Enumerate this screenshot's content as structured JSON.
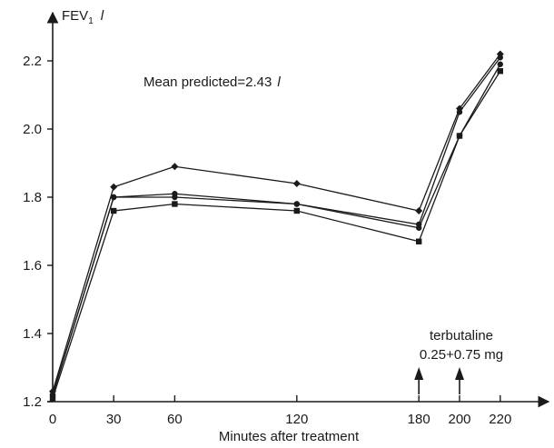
{
  "chart_data": {
    "type": "line",
    "title": "",
    "ylabel": "FEV",
    "ylabel_subscript": "1",
    "ylabel_unit": "l",
    "xlabel": "Minutes after treatment",
    "x_tick_labels": [
      "0",
      "30",
      "60",
      "120",
      "180",
      "200",
      "220"
    ],
    "y_tick_labels": [
      "1.2",
      "1.4",
      "1.6",
      "1.8",
      "2.0",
      "2.2"
    ],
    "x_ticks": [
      0,
      30,
      60,
      120,
      180,
      200,
      220
    ],
    "y_ticks": [
      1.2,
      1.4,
      1.6,
      1.8,
      2.0,
      2.2
    ],
    "xlim": [
      0,
      240
    ],
    "ylim": [
      1.2,
      2.3
    ],
    "x": [
      0,
      30,
      60,
      120,
      180,
      200,
      220
    ],
    "series": [
      {
        "values": [
          1.23,
          1.83,
          1.89,
          1.84,
          1.76,
          2.06,
          2.22
        ],
        "marker": "diamond"
      },
      {
        "values": [
          1.22,
          1.8,
          1.81,
          1.78,
          1.72,
          2.05,
          2.21
        ],
        "marker": "circle"
      },
      {
        "values": [
          1.22,
          1.8,
          1.8,
          1.78,
          1.71,
          1.98,
          2.19
        ],
        "marker": "circle"
      },
      {
        "values": [
          1.21,
          1.76,
          1.78,
          1.76,
          1.67,
          1.98,
          2.17
        ],
        "marker": "square"
      }
    ],
    "annotations": {
      "mean_predicted_prefix": "Mean predicted=2.43",
      "mean_predicted_unit": "l",
      "drug_name": "terbutaline",
      "drug_dose": "0.25+0.75 mg",
      "drug_times": [
        180,
        200
      ]
    },
    "grid": false,
    "legend": "none"
  }
}
